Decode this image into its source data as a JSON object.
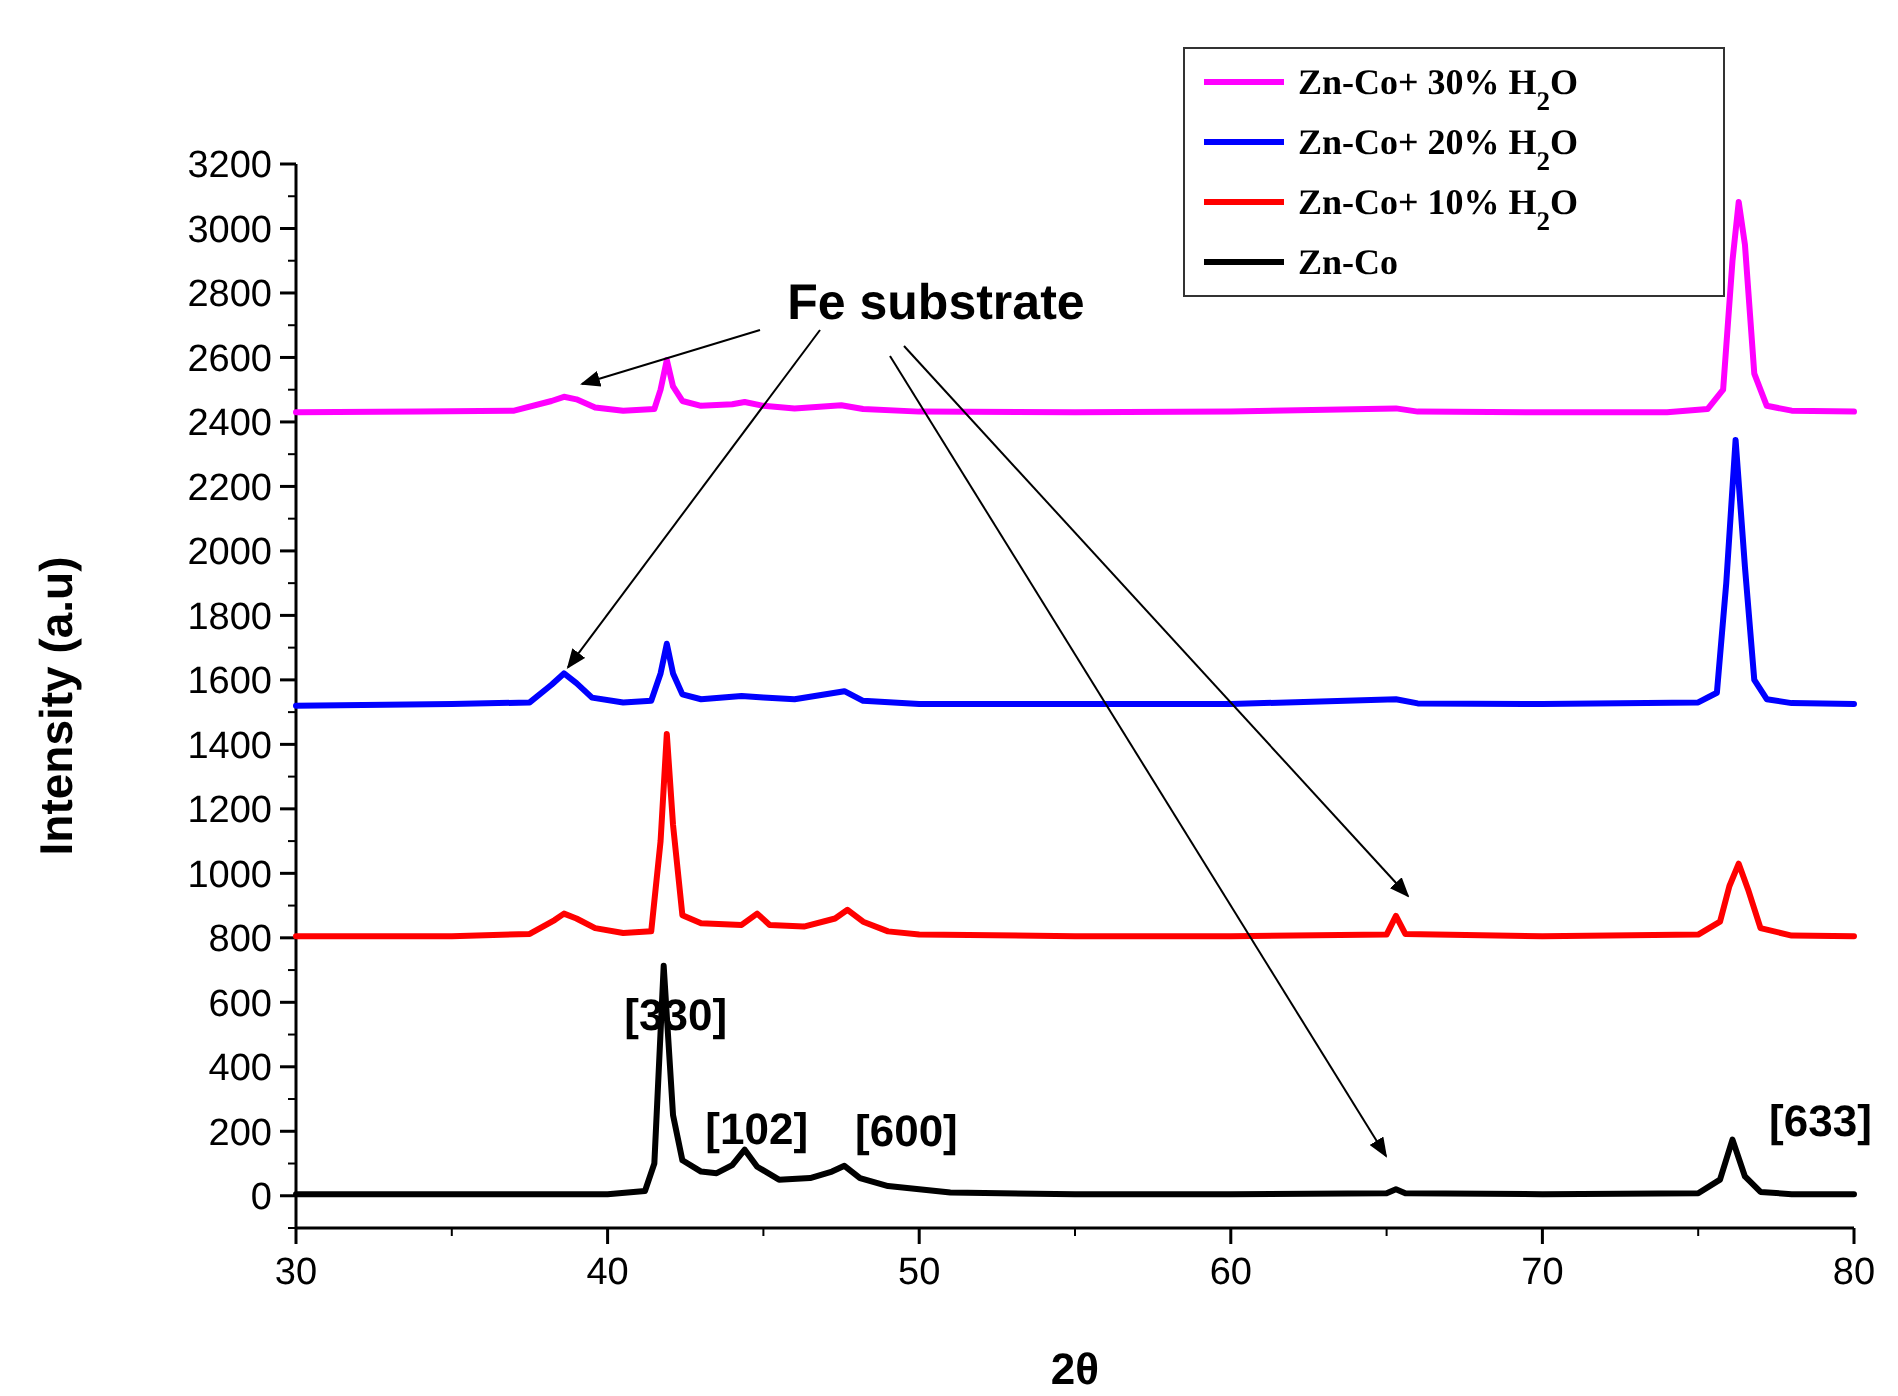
{
  "chart_data": {
    "type": "line",
    "xlabel": "2θ",
    "ylabel": "Intensity (a.u)",
    "xlim": [
      30,
      80
    ],
    "xticks": [
      30,
      40,
      50,
      60,
      70,
      80
    ],
    "ylim": [
      -100,
      3200
    ],
    "yticks": [
      0,
      200,
      400,
      600,
      800,
      1000,
      1200,
      1400,
      1600,
      1800,
      2000,
      2200,
      2400,
      2600,
      2800,
      3000,
      3200
    ],
    "legend": "top right",
    "grid": false,
    "marker": "none",
    "line_style": "solid",
    "annotations": [
      {
        "text": "Fe substrate",
        "x": 38.6,
        "y": 1620
      },
      {
        "text": "[330]",
        "x": 41.8,
        "y": 713
      },
      {
        "text": "[102]",
        "x": 44.4,
        "y": 143
      },
      {
        "text": "[600]",
        "x": 47.6,
        "y": 93
      },
      {
        "text": "[633]",
        "x": 76.1,
        "y": 174
      }
    ],
    "series": [
      {
        "name": "Zn-Co+ 30% H$_{2}$O",
        "color": "#ff00ff",
        "x": [
          30,
          34,
          37,
          38.2,
          38.6,
          39,
          39.6,
          40.5,
          41.5,
          41.7,
          41.9,
          42.1,
          42.4,
          43,
          44,
          44.4,
          45,
          46,
          47.5,
          48.2,
          50,
          55,
          60,
          65.3,
          66,
          70,
          74,
          75.3,
          75.8,
          76.1,
          76.3,
          76.5,
          76.8,
          77.2,
          78,
          80
        ],
        "values": [
          2430,
          2432,
          2435,
          2465,
          2478,
          2470,
          2445,
          2435,
          2440,
          2500,
          2592,
          2510,
          2465,
          2450,
          2455,
          2462,
          2450,
          2442,
          2452,
          2440,
          2432,
          2430,
          2432,
          2442,
          2432,
          2430,
          2430,
          2440,
          2500,
          2900,
          3082,
          2950,
          2550,
          2450,
          2435,
          2432
        ]
      },
      {
        "name": "Zn-Co+ 20% H$_{2}$O",
        "color": "#0000ff",
        "x": [
          30,
          35,
          37.5,
          38.2,
          38.6,
          39,
          39.5,
          40.5,
          41.4,
          41.7,
          41.9,
          42.1,
          42.4,
          43,
          44.3,
          45,
          46,
          47.6,
          48.2,
          50,
          55,
          60,
          65.3,
          66,
          70,
          75,
          75.6,
          75.9,
          76.2,
          76.5,
          76.8,
          77.2,
          78,
          80
        ],
        "values": [
          1520,
          1525,
          1530,
          1585,
          1620,
          1590,
          1545,
          1530,
          1535,
          1620,
          1712,
          1620,
          1555,
          1540,
          1550,
          1545,
          1540,
          1565,
          1535,
          1525,
          1525,
          1525,
          1540,
          1527,
          1525,
          1530,
          1560,
          1900,
          2344,
          1950,
          1600,
          1540,
          1528,
          1525
        ]
      },
      {
        "name": "Zn-Co+ 10% H$_{2}$O",
        "color": "#ff0000",
        "x": [
          30,
          35,
          37.5,
          38.3,
          38.6,
          39,
          39.6,
          40.5,
          41.4,
          41.7,
          41.9,
          42.1,
          42.4,
          43,
          44.3,
          44.8,
          45.2,
          46.3,
          47.3,
          47.7,
          48.2,
          49,
          50,
          55,
          60,
          65,
          65.3,
          65.6,
          70,
          75,
          75.7,
          76,
          76.3,
          76.6,
          77,
          78,
          80
        ],
        "values": [
          805,
          805,
          812,
          855,
          875,
          860,
          830,
          815,
          820,
          1100,
          1432,
          1150,
          870,
          845,
          840,
          875,
          840,
          835,
          860,
          887,
          850,
          820,
          810,
          805,
          805,
          810,
          868,
          812,
          805,
          810,
          850,
          960,
          1030,
          950,
          830,
          807,
          805
        ]
      },
      {
        "name": "Zn-Co",
        "color": "#000000",
        "x": [
          30,
          35,
          40,
          41.2,
          41.5,
          41.8,
          42.1,
          42.4,
          43,
          43.5,
          44,
          44.4,
          44.8,
          45.5,
          46.5,
          47.2,
          47.6,
          48.1,
          49,
          51,
          55,
          60,
          65,
          65.3,
          65.6,
          70,
          75,
          75.7,
          76.1,
          76.5,
          77,
          78,
          80
        ],
        "values": [
          5,
          5,
          5,
          15,
          100,
          713,
          250,
          110,
          75,
          70,
          95,
          143,
          90,
          50,
          55,
          75,
          93,
          55,
          30,
          10,
          5,
          5,
          8,
          20,
          8,
          5,
          8,
          50,
          174,
          60,
          12,
          5,
          5
        ]
      }
    ]
  }
}
